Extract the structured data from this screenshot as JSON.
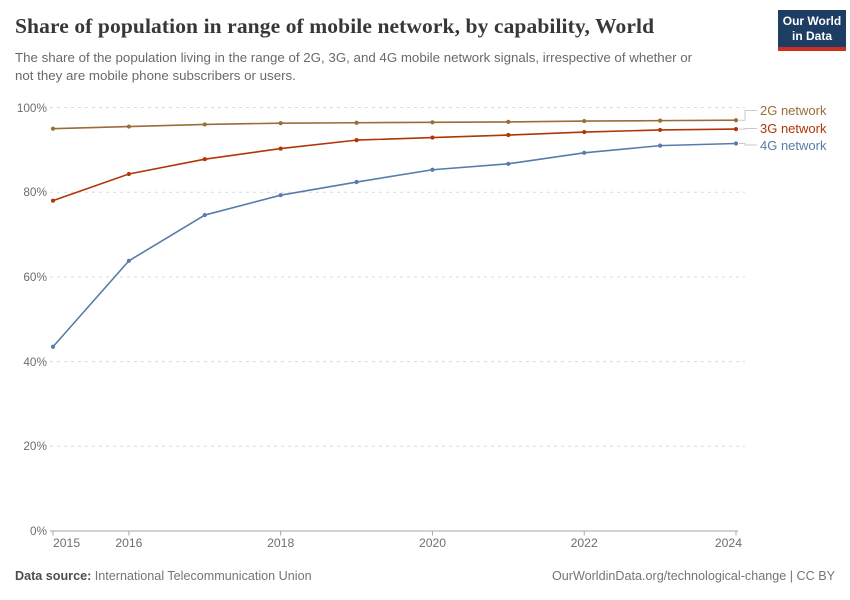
{
  "header": {
    "title": "Share of population in range of mobile network, by capability, World",
    "subtitle": "The share of the population living in the range of 2G, 3G, and 4G mobile network signals, irrespective of whether or not they are mobile phone subscribers or users.",
    "logo": {
      "line1": "Our World",
      "line2": "in Data"
    }
  },
  "brand": {
    "logo_navy": "#1d3d63",
    "logo_red": "#c8301f"
  },
  "chart_data": {
    "type": "line",
    "title": "Share of population in range of mobile network, by capability, World",
    "x": [
      2015,
      2016,
      2017,
      2018,
      2019,
      2020,
      2021,
      2022,
      2023,
      2024
    ],
    "series": [
      {
        "name": "2G network",
        "color": "#996D39",
        "values": [
          95.0,
          95.5,
          96.0,
          96.3,
          96.4,
          96.5,
          96.6,
          96.8,
          96.9,
          97.0
        ]
      },
      {
        "name": "3G network",
        "color": "#B13507",
        "values": [
          78.0,
          84.3,
          87.8,
          90.3,
          92.3,
          92.9,
          93.5,
          94.2,
          94.7,
          94.9
        ]
      },
      {
        "name": "4G network",
        "color": "#577CA9",
        "values": [
          43.5,
          63.8,
          74.6,
          79.3,
          82.4,
          85.3,
          86.7,
          89.3,
          91.0,
          91.5
        ]
      }
    ],
    "ylim": [
      0,
      100
    ],
    "y_ticks": [
      "0%",
      "20%",
      "40%",
      "60%",
      "80%",
      "100%"
    ],
    "x_tick_years": [
      2015,
      2016,
      2018,
      2020,
      2022,
      2024
    ],
    "grid": true,
    "legend_position": "right",
    "axis_color": "#a7a7a7",
    "grid_color": "#dadada",
    "connector_color": "#c9c9c9"
  },
  "footer": {
    "source_label": "Data source:",
    "source_value": "International Telecommunication Union",
    "credit": "OurWorldinData.org/technological-change | CC BY"
  }
}
